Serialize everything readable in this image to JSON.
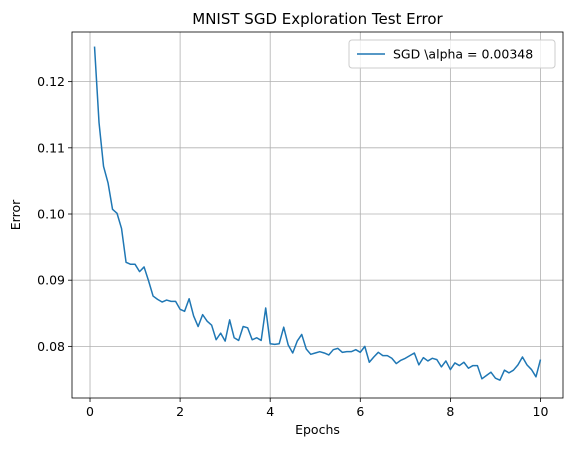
{
  "chart_data": {
    "type": "line",
    "title": "MNIST SGD Exploration Test Error",
    "xlabel": "Epochs",
    "ylabel": "Error",
    "xlim": [
      -0.4,
      10.5
    ],
    "ylim": [
      0.0722,
      0.1275
    ],
    "xticks": [
      0,
      2,
      4,
      6,
      8,
      10
    ],
    "xtick_labels": [
      "0",
      "2",
      "4",
      "6",
      "8",
      "10"
    ],
    "yticks": [
      0.08,
      0.09,
      0.1,
      0.11,
      0.12
    ],
    "ytick_labels": [
      "0.08",
      "0.09",
      "0.10",
      "0.11",
      "0.12"
    ],
    "grid": true,
    "legend_position": "top-right",
    "series": [
      {
        "name": "SGD \\alpha = 0.00348",
        "color": "#1f77b4",
        "x": [
          0.1,
          0.2,
          0.3,
          0.4,
          0.5,
          0.6,
          0.7,
          0.8,
          0.9,
          1.0,
          1.1,
          1.2,
          1.3,
          1.4,
          1.5,
          1.6,
          1.7,
          1.8,
          1.9,
          2.0,
          2.1,
          2.2,
          2.3,
          2.4,
          2.5,
          2.6,
          2.7,
          2.8,
          2.9,
          3.0,
          3.1,
          3.2,
          3.3,
          3.4,
          3.5,
          3.6,
          3.7,
          3.8,
          3.9,
          4.0,
          4.1,
          4.2,
          4.3,
          4.4,
          4.5,
          4.6,
          4.7,
          4.8,
          4.9,
          5.0,
          5.1,
          5.2,
          5.3,
          5.4,
          5.5,
          5.6,
          5.7,
          5.8,
          5.9,
          6.0,
          6.1,
          6.2,
          6.3,
          6.4,
          6.5,
          6.6,
          6.7,
          6.8,
          6.9,
          7.0,
          7.1,
          7.2,
          7.3,
          7.4,
          7.5,
          7.6,
          7.7,
          7.8,
          7.9,
          8.0,
          8.1,
          8.2,
          8.3,
          8.4,
          8.5,
          8.6,
          8.7,
          8.8,
          8.9,
          9.0,
          9.1,
          9.2,
          9.3,
          9.4,
          9.5,
          9.6,
          9.7,
          9.8,
          9.9,
          10.0
        ],
        "y": [
          0.1253,
          0.1138,
          0.1072,
          0.1047,
          0.1007,
          0.1001,
          0.0978,
          0.0927,
          0.0924,
          0.0924,
          0.0913,
          0.092,
          0.0899,
          0.0876,
          0.0871,
          0.0867,
          0.087,
          0.0868,
          0.0868,
          0.0856,
          0.0853,
          0.0872,
          0.0846,
          0.083,
          0.0848,
          0.0838,
          0.0832,
          0.081,
          0.082,
          0.0808,
          0.084,
          0.0813,
          0.0809,
          0.083,
          0.0828,
          0.081,
          0.0813,
          0.0809,
          0.0858,
          0.0804,
          0.0803,
          0.0804,
          0.0829,
          0.0802,
          0.079,
          0.0808,
          0.0818,
          0.0796,
          0.0788,
          0.079,
          0.0792,
          0.079,
          0.0787,
          0.0795,
          0.0797,
          0.0791,
          0.0792,
          0.0792,
          0.0795,
          0.0791,
          0.08,
          0.0776,
          0.0784,
          0.0791,
          0.0786,
          0.0786,
          0.0782,
          0.0774,
          0.0779,
          0.0782,
          0.0786,
          0.079,
          0.0772,
          0.0783,
          0.0778,
          0.0782,
          0.078,
          0.0769,
          0.0778,
          0.0765,
          0.0775,
          0.0771,
          0.0776,
          0.0767,
          0.0771,
          0.0771,
          0.0751,
          0.0756,
          0.0761,
          0.0752,
          0.0749,
          0.0764,
          0.076,
          0.0764,
          0.0772,
          0.0784,
          0.0772,
          0.0765,
          0.0754,
          0.078
        ]
      }
    ]
  }
}
